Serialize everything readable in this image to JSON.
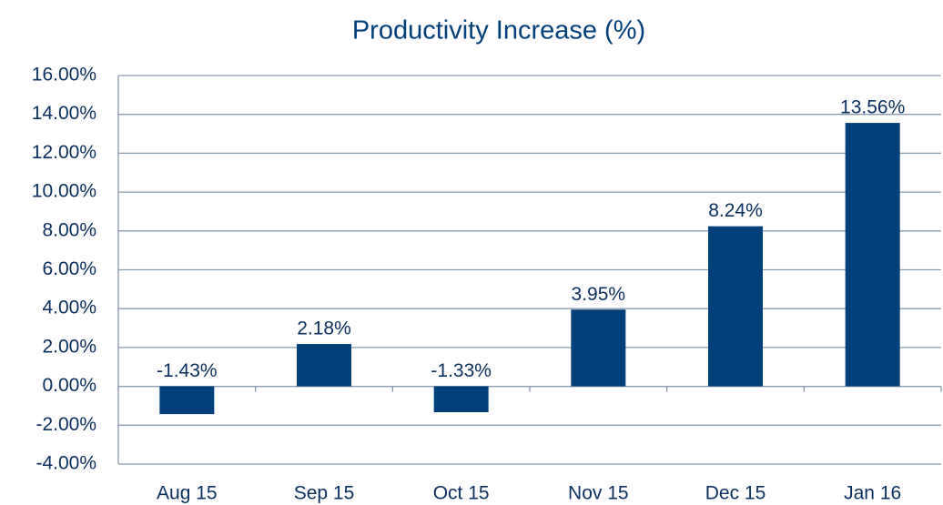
{
  "chart_data": {
    "type": "bar",
    "title": "Productivity Increase (%)",
    "categories": [
      "Aug 15",
      "Sep 15",
      "Oct 15",
      "Nov 15",
      "Dec 15",
      "Jan 16"
    ],
    "values": [
      -1.43,
      2.18,
      -1.33,
      3.95,
      8.24,
      13.56
    ],
    "value_labels": [
      "-1.43%",
      "2.18%",
      "-1.33%",
      "3.95%",
      "8.24%",
      "13.56%"
    ],
    "color": "#003f7a",
    "ylim": [
      -4,
      16
    ],
    "yticks": [
      {
        "value": -4,
        "label": "-4.00%"
      },
      {
        "value": -2,
        "label": "-2.00%"
      },
      {
        "value": 0,
        "label": "0.00%"
      },
      {
        "value": 2,
        "label": "2.00%"
      },
      {
        "value": 4,
        "label": "4.00%"
      },
      {
        "value": 6,
        "label": "6.00%"
      },
      {
        "value": 8,
        "label": "8.00%"
      },
      {
        "value": 10,
        "label": "10.00%"
      },
      {
        "value": 12,
        "label": "12.00%"
      },
      {
        "value": 14,
        "label": "14.00%"
      },
      {
        "value": 16,
        "label": "16.00%"
      }
    ],
    "grid": true
  }
}
